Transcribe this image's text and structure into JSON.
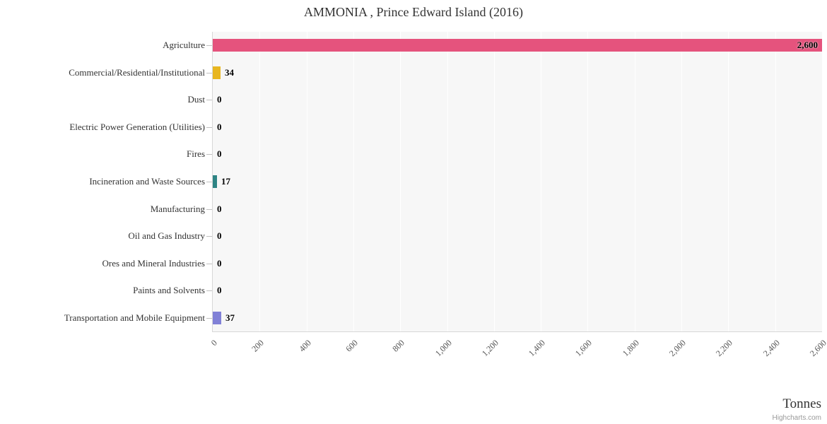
{
  "chart_data": {
    "type": "bar",
    "orientation": "horizontal",
    "title": "AMMONIA , Prince Edward Island (2016)",
    "categories": [
      "Agriculture",
      "Commercial/Residential/Institutional",
      "Dust",
      "Electric Power Generation (Utilities)",
      "Fires",
      "Incineration and Waste Sources",
      "Manufacturing",
      "Oil and Gas Industry",
      "Ores and Mineral Industries",
      "Paints and Solvents",
      "Transportation and Mobile Equipment"
    ],
    "values": [
      2600,
      34,
      0,
      0,
      0,
      17,
      0,
      0,
      0,
      0,
      37
    ],
    "value_labels": [
      "2,600",
      "34",
      "0",
      "0",
      "0",
      "17",
      "0",
      "0",
      "0",
      "0",
      "37"
    ],
    "bar_colors": [
      "#e5537d",
      "#e8b620",
      null,
      null,
      null,
      "#2e8585",
      null,
      null,
      null,
      null,
      "#8181d7"
    ],
    "xlabel": "Tonnes",
    "xlim": [
      0,
      2600
    ],
    "x_tick_interval": 200,
    "x_tick_labels": [
      "0",
      "200",
      "400",
      "600",
      "800",
      "1,000",
      "1,200",
      "1,400",
      "1,600",
      "1,800",
      "2,000",
      "2,200",
      "2,400",
      "2,600"
    ],
    "x_tick_rotation": -45,
    "grid": true,
    "legend": false,
    "plot_background": "#f7f7f7",
    "grid_color": "#ffffff"
  },
  "credits": {
    "label": "Highcharts.com"
  }
}
